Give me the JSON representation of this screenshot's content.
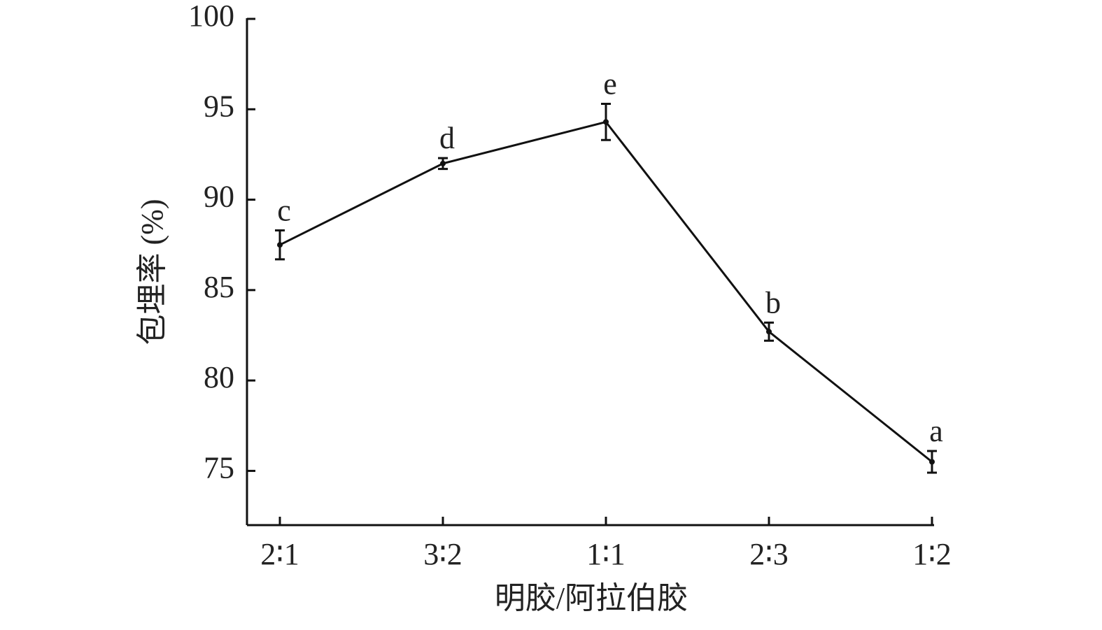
{
  "chart_data": {
    "type": "line",
    "x_label": "明胶/阿拉伯胶",
    "y_label": "包埋率 (%)",
    "categories": [
      "2∶1",
      "3∶2",
      "1∶1",
      "2∶3",
      "1∶2"
    ],
    "series": [
      {
        "color": "#111111",
        "values": [
          87.5,
          92.0,
          94.3,
          82.7,
          75.5
        ],
        "errors": [
          0.8,
          0.3,
          1.0,
          0.5,
          0.6
        ],
        "annotations": [
          "c",
          "d",
          "e",
          "b",
          "a"
        ]
      }
    ],
    "ylim": [
      72,
      100
    ],
    "yticks": [
      75,
      80,
      85,
      90,
      95,
      100
    ]
  }
}
